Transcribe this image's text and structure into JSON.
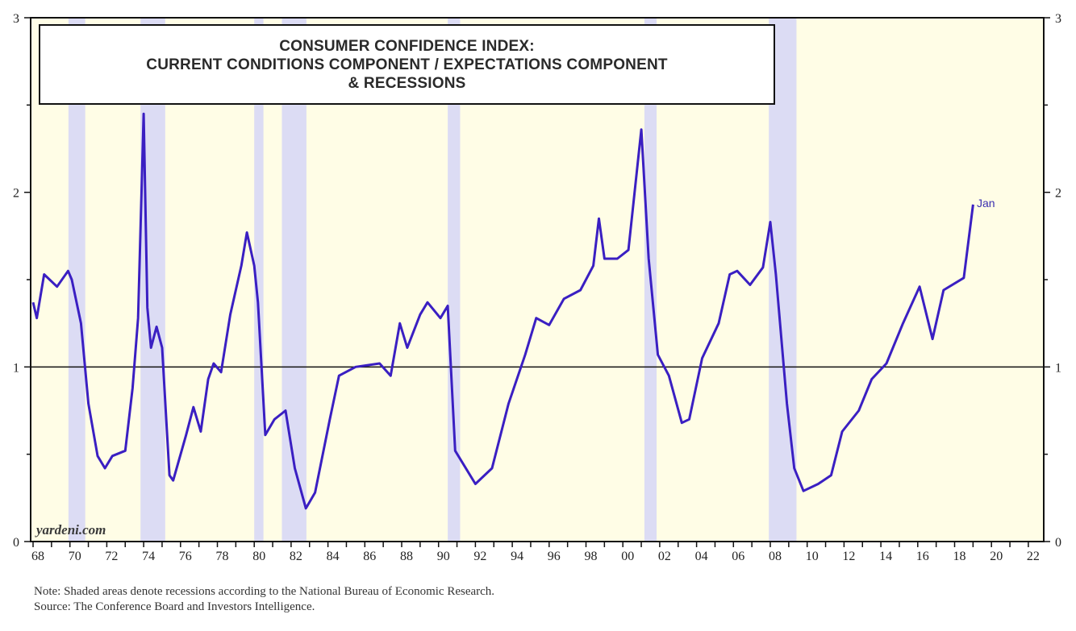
{
  "chart_data": {
    "type": "line",
    "title": [
      "CONSUMER CONFIDENCE INDEX:",
      "CURRENT CONDITIONS COMPONENT / EXPECTATIONS COMPONENT",
      "& RECESSIONS"
    ],
    "xlabel": "",
    "ylabel": "",
    "xlim": [
      1967.9,
      2022.9
    ],
    "ylim": [
      0,
      3
    ],
    "y_ticks": [
      0,
      1,
      2,
      3
    ],
    "y_tick_labels": [
      "0",
      "1",
      "2",
      "3"
    ],
    "x_tick_labels": [
      "68",
      "70",
      "72",
      "74",
      "76",
      "78",
      "80",
      "82",
      "84",
      "86",
      "88",
      "90",
      "92",
      "94",
      "96",
      "98",
      "00",
      "02",
      "04",
      "06",
      "08",
      "10",
      "12",
      "14",
      "16",
      "18",
      "20",
      "22"
    ],
    "reference_line": 1,
    "grid": false,
    "legend": "none",
    "end_label": "Jan",
    "recessions": [
      [
        1969.92,
        1970.83
      ],
      [
        1973.83,
        1975.17
      ],
      [
        1980.0,
        1980.5
      ],
      [
        1981.5,
        1982.83
      ],
      [
        1990.5,
        1991.17
      ],
      [
        2001.17,
        2001.83
      ],
      [
        2007.92,
        2009.42
      ]
    ],
    "series": [
      {
        "x": [
          1968.0,
          1968.2,
          1968.6,
          1969.3,
          1969.9,
          1970.1,
          1970.6,
          1971.0,
          1971.5,
          1971.9,
          1972.3,
          1973.0,
          1973.4,
          1973.7,
          1974.0,
          1974.2,
          1974.4,
          1974.7,
          1975.0,
          1975.4,
          1975.6,
          1976.3,
          1976.7,
          1977.1,
          1977.5,
          1977.8,
          1978.2,
          1978.7,
          1979.3,
          1979.6,
          1980.0,
          1980.2,
          1980.6,
          1981.1,
          1981.7,
          1982.2,
          1982.8,
          1983.3,
          1984.1,
          1984.6,
          1985.5,
          1986.8,
          1987.4,
          1987.9,
          1988.3,
          1989.0,
          1989.4,
          1990.1,
          1990.5,
          1990.9,
          1992.0,
          1992.9,
          1993.8,
          1994.7,
          1995.3,
          1996.0,
          1996.8,
          1997.7,
          1998.4,
          1998.7,
          1999.0,
          1999.7,
          2000.3,
          2001.0,
          2001.4,
          2001.9,
          2002.5,
          2003.2,
          2003.6,
          2004.3,
          2005.2,
          2005.8,
          2006.2,
          2006.9,
          2007.6,
          2008.0,
          2008.3,
          2008.9,
          2009.3,
          2009.8,
          2010.6,
          2011.3,
          2011.9,
          2012.8,
          2013.5,
          2014.3,
          2015.2,
          2016.1,
          2016.8,
          2017.4,
          2018.5,
          2019.0
        ],
        "y": [
          1.37,
          1.28,
          1.53,
          1.46,
          1.55,
          1.5,
          1.25,
          0.79,
          0.49,
          0.42,
          0.49,
          0.52,
          0.88,
          1.28,
          2.45,
          1.34,
          1.11,
          1.23,
          1.11,
          0.38,
          0.35,
          0.61,
          0.77,
          0.63,
          0.93,
          1.02,
          0.97,
          1.3,
          1.58,
          1.77,
          1.58,
          1.37,
          0.61,
          0.7,
          0.75,
          0.42,
          0.19,
          0.28,
          0.7,
          0.95,
          1.0,
          1.02,
          0.95,
          1.25,
          1.11,
          1.3,
          1.37,
          1.28,
          1.35,
          0.52,
          0.33,
          0.42,
          0.79,
          1.07,
          1.28,
          1.24,
          1.39,
          1.44,
          1.58,
          1.85,
          1.62,
          1.62,
          1.67,
          2.36,
          1.62,
          1.07,
          0.95,
          0.68,
          0.7,
          1.05,
          1.25,
          1.53,
          1.55,
          1.47,
          1.57,
          1.83,
          1.53,
          0.79,
          0.42,
          0.29,
          0.33,
          0.38,
          0.63,
          0.75,
          0.93,
          1.02,
          1.25,
          1.46,
          1.16,
          1.44,
          1.51,
          1.93
        ]
      }
    ]
  },
  "watermark": "yardeni.com",
  "notes": {
    "note": "Note: Shaded areas denote recessions according to the National Bureau of Economic Research.",
    "source": "Source: The Conference Board and Investors Intelligence."
  },
  "colors": {
    "background": "#fffde6",
    "recession": "#dcdcf4",
    "line": "#3a1fc2",
    "axis": "#111111"
  }
}
